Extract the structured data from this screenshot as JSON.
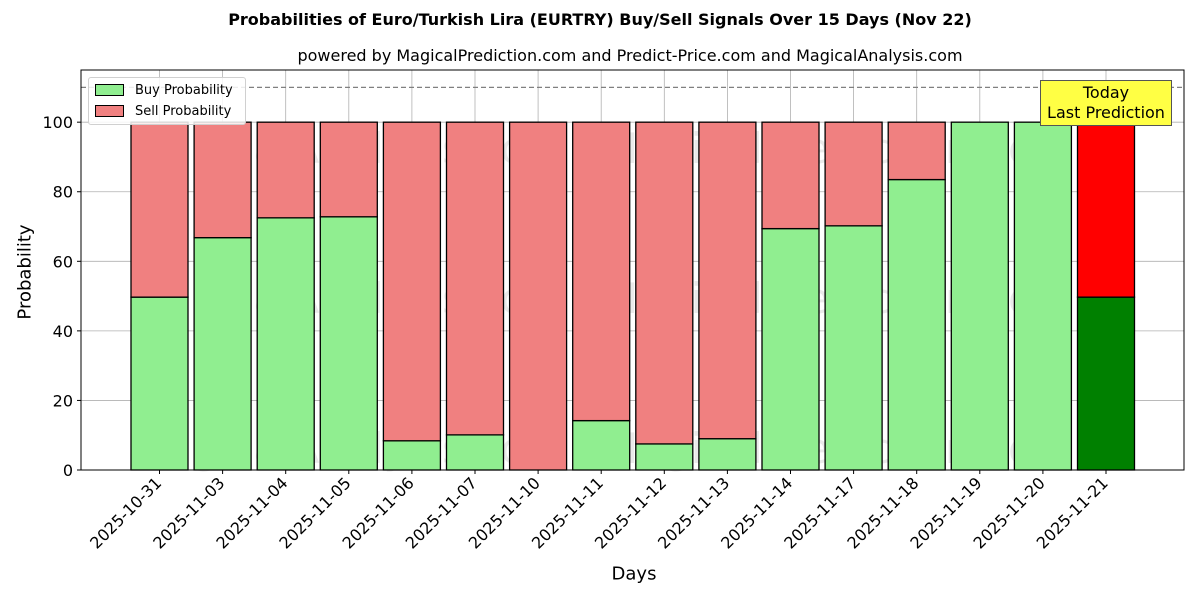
{
  "chart_data": {
    "type": "bar",
    "stacked": true,
    "title": "Probabilities of Euro/Turkish Lira (EURTRY) Buy/Sell Signals Over 15 Days (Nov 22)",
    "subtitle": "powered by MagicalPrediction.com and Predict-Price.com and MagicalAnalysis.com",
    "xlabel": "Days",
    "ylabel": "Probability",
    "ylim": [
      0,
      115
    ],
    "yticks": [
      0,
      20,
      40,
      60,
      80,
      100
    ],
    "grid": true,
    "legend_position": "upper left",
    "reference_line": {
      "y": 110,
      "style": "dashed",
      "color": "#808080"
    },
    "categories": [
      "2025-10-31",
      "2025-11-03",
      "2025-11-04",
      "2025-11-05",
      "2025-11-06",
      "2025-11-07",
      "2025-11-10",
      "2025-11-11",
      "2025-11-12",
      "2025-11-13",
      "2025-11-14",
      "2025-11-17",
      "2025-11-18",
      "2025-11-19",
      "2025-11-20",
      "2025-11-21"
    ],
    "series": [
      {
        "name": "Buy Probability",
        "color": "#90ee90",
        "values": [
          49.7,
          66.8,
          72.5,
          72.8,
          8.4,
          10.1,
          0.0,
          14.2,
          7.5,
          9.0,
          69.4,
          70.2,
          83.5,
          100.0,
          100.0,
          49.7
        ]
      },
      {
        "name": "Sell Probability",
        "color": "#f08080",
        "values": [
          50.3,
          33.2,
          27.5,
          27.2,
          91.6,
          89.9,
          100.0,
          85.8,
          92.5,
          91.0,
          30.6,
          29.8,
          16.5,
          0.0,
          0.0,
          50.3
        ]
      }
    ],
    "highlight": {
      "index": 15,
      "buy_color": "#008000",
      "sell_color": "#ff0000"
    },
    "annotation": {
      "lines": [
        "Today",
        "Last Prediction"
      ],
      "background": "#ffff44"
    },
    "watermarks": [
      "MagicalAnalysis.com",
      "MagicalPrediction.com"
    ]
  },
  "legend": {
    "buy_label": "Buy Probability",
    "sell_label": "Sell Probability"
  }
}
